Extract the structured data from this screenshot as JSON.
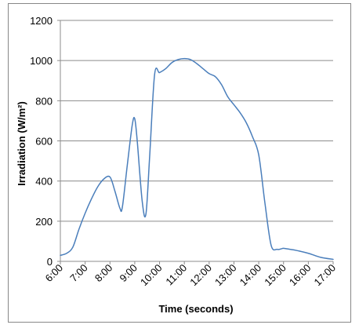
{
  "chart_data": {
    "type": "line",
    "xlabel": "Time (seconds)",
    "ylabel": "Irradiation (W/m²)",
    "ylim": [
      0,
      1200
    ],
    "yticks": [
      0,
      200,
      400,
      600,
      800,
      1000,
      1200
    ],
    "xlim": [
      6,
      17
    ],
    "xticks": [
      "6:00",
      "7:00",
      "8:00",
      "9:00",
      "10:00",
      "11:00",
      "12:00",
      "13:00",
      "14:00",
      "15:00",
      "16:00",
      "17:00"
    ],
    "grid": "horizontal",
    "legend": "none",
    "line_color": "#4a7ebb",
    "series": [
      {
        "x": [
          6.0,
          6.25,
          6.5,
          6.75,
          7.0,
          7.25,
          7.5,
          7.75,
          8.0,
          8.2,
          8.4,
          8.5,
          8.7,
          8.9,
          9.0,
          9.1,
          9.3,
          9.45,
          9.6,
          9.8,
          10.0,
          10.25,
          10.5,
          10.75,
          11.0,
          11.25,
          11.5,
          11.75,
          12.0,
          12.25,
          12.5,
          12.75,
          13.0,
          13.25,
          13.5,
          13.75,
          14.0,
          14.25,
          14.5,
          14.75,
          14.9,
          15.0,
          15.25,
          15.5,
          16.0,
          16.5,
          17.0
        ],
        "y": [
          30,
          40,
          70,
          160,
          240,
          310,
          370,
          410,
          420,
          350,
          265,
          270,
          480,
          680,
          710,
          600,
          300,
          235,
          520,
          930,
          940,
          960,
          990,
          1005,
          1010,
          1005,
          985,
          960,
          935,
          920,
          880,
          820,
          780,
          740,
          690,
          620,
          530,
          290,
          80,
          60,
          62,
          65,
          60,
          55,
          40,
          20,
          10
        ]
      }
    ]
  }
}
